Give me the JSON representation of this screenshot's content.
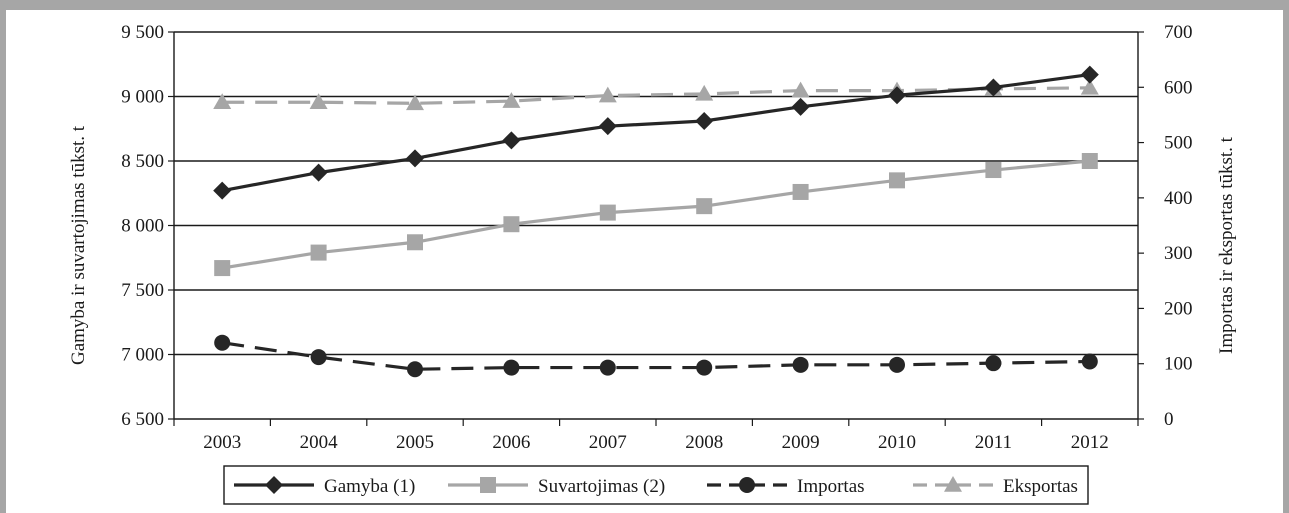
{
  "chart_data": {
    "type": "line",
    "title": "",
    "categories": [
      "2003",
      "2004",
      "2005",
      "2006",
      "2007",
      "2008",
      "2009",
      "2010",
      "2011",
      "2012"
    ],
    "y_left": {
      "label": "Gamyba ir suvartojimas tūkst. t",
      "min": 6500,
      "max": 9500,
      "step": 500,
      "tick_labels": [
        "6 500",
        "7 000",
        "7 500",
        "8 000",
        "8 500",
        "9 000",
        "9 500"
      ]
    },
    "y_right": {
      "label": "Importas ir eksportas tūkst. t",
      "min": 0,
      "max": 700,
      "step": 100,
      "tick_labels": [
        "0",
        "100",
        "200",
        "300",
        "400",
        "500",
        "600",
        "700"
      ]
    },
    "grid": true,
    "legend_position": "bottom",
    "series": [
      {
        "name": "Gamyba (1)",
        "axis": "left",
        "color": "#262626",
        "dash": "solid",
        "marker": "diamond",
        "values": [
          8270,
          8410,
          8520,
          8660,
          8770,
          8810,
          8920,
          9010,
          9070,
          9170
        ]
      },
      {
        "name": "Suvartojimas (2)",
        "axis": "left",
        "color": "#a6a6a6",
        "dash": "solid",
        "marker": "square",
        "values": [
          7670,
          7790,
          7870,
          8010,
          8100,
          8150,
          8260,
          8350,
          8430,
          8500
        ]
      },
      {
        "name": "Importas",
        "axis": "right",
        "color": "#262626",
        "dash": "dashed",
        "marker": "circle",
        "values": [
          138,
          112,
          90,
          93,
          93,
          93,
          98,
          98,
          101,
          104
        ]
      },
      {
        "name": "Eksportas",
        "axis": "right",
        "color": "#a6a6a6",
        "dash": "dashed",
        "marker": "triangle",
        "values": [
          573,
          573,
          571,
          575,
          585,
          588,
          594,
          594,
          597,
          599
        ]
      }
    ]
  }
}
